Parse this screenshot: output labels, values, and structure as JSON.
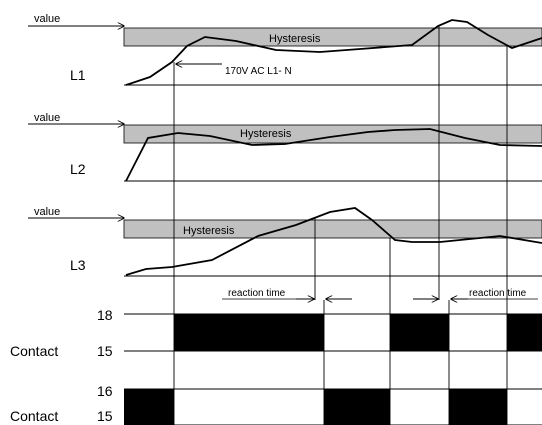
{
  "channels": [
    {
      "name": "L1",
      "value_label": "value",
      "band_label": "Hysteresis",
      "note": "170V AC    L1- N"
    },
    {
      "name": "L2",
      "value_label": "value",
      "band_label": "Hysteresis"
    },
    {
      "name": "L3",
      "value_label": "value",
      "band_label": "Hysteresis"
    }
  ],
  "reaction_time_label": "reaction time",
  "contacts": [
    {
      "label": "Contact",
      "top_terminal": "18",
      "bottom_terminal": "15"
    },
    {
      "label": "Contact",
      "top_terminal": "16",
      "bottom_terminal": "15"
    }
  ],
  "colors": {
    "band": "#c0c0c0",
    "contact_on": "#000000",
    "line": "#000000"
  }
}
